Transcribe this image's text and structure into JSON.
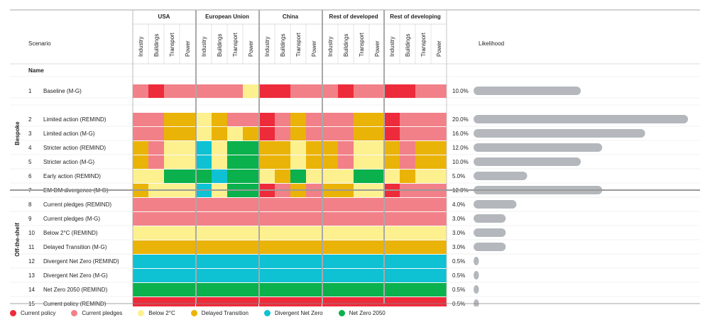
{
  "header": {
    "scenario": "Scenario",
    "likelihood": "Likelihood",
    "name": "Name"
  },
  "groups": {
    "bespoke": "Bespoke",
    "offshelf": "Off-the-shelf"
  },
  "regions": [
    "USA",
    "European Union",
    "China",
    "Rest of developed",
    "Rest of developing"
  ],
  "sectors": [
    "Industry",
    "Buildings",
    "Transport",
    "Power"
  ],
  "legend": [
    {
      "key": "CP",
      "label": "Current policy",
      "color": "#ee2b3b"
    },
    {
      "key": "PL",
      "label": "Current pledges",
      "color": "#f28088"
    },
    {
      "key": "B2",
      "label": "Below 2°C",
      "color": "#fdf08f"
    },
    {
      "key": "DT",
      "label": "Delayed Transition",
      "color": "#eab307"
    },
    {
      "key": "DN",
      "label": "Divergent Net Zero",
      "color": "#0ec1d3"
    },
    {
      "key": "NZ",
      "label": "Net Zero 2050",
      "color": "#0bb14c"
    }
  ],
  "chart_data": {
    "type": "table",
    "columns_note": "regions × sectors",
    "rows": [
      {
        "num": "1",
        "name": "Baseline (M-G)",
        "group": "",
        "likelihood": "10.0%",
        "value": 10.0,
        "cells": [
          "PL",
          "CP",
          "PL",
          "PL",
          "PL",
          "PL",
          "PL",
          "B2",
          "CP",
          "CP",
          "PL",
          "PL",
          "PL",
          "CP",
          "PL",
          "PL",
          "CP",
          "CP",
          "PL",
          "PL"
        ]
      },
      {
        "num": "2",
        "name": "Limited action (REMIND)",
        "group": "bespoke",
        "likelihood": "20.0%",
        "value": 20.0,
        "cells": [
          "PL",
          "PL",
          "DT",
          "DT",
          "B2",
          "DT",
          "PL",
          "PL",
          "CP",
          "PL",
          "DT",
          "PL",
          "PL",
          "PL",
          "DT",
          "DT",
          "CP",
          "PL",
          "PL",
          "PL"
        ]
      },
      {
        "num": "3",
        "name": "Limited action (M-G)",
        "group": "bespoke",
        "likelihood": "16.0%",
        "value": 16.0,
        "cells": [
          "PL",
          "PL",
          "DT",
          "DT",
          "B2",
          "DT",
          "B2",
          "DT",
          "CP",
          "PL",
          "DT",
          "PL",
          "PL",
          "PL",
          "DT",
          "DT",
          "CP",
          "PL",
          "PL",
          "PL"
        ]
      },
      {
        "num": "4",
        "name": "Stricter action (REMIND)",
        "group": "bespoke",
        "likelihood": "12.0%",
        "value": 12.0,
        "cells": [
          "DT",
          "PL",
          "B2",
          "B2",
          "DN",
          "B2",
          "NZ",
          "NZ",
          "DT",
          "DT",
          "B2",
          "DT",
          "DT",
          "PL",
          "B2",
          "B2",
          "DT",
          "PL",
          "DT",
          "DT"
        ]
      },
      {
        "num": "5",
        "name": "Stricter action (M-G)",
        "group": "bespoke",
        "likelihood": "10.0%",
        "value": 10.0,
        "cells": [
          "DT",
          "PL",
          "B2",
          "B2",
          "DN",
          "B2",
          "NZ",
          "NZ",
          "DT",
          "DT",
          "B2",
          "DT",
          "DT",
          "PL",
          "B2",
          "B2",
          "DT",
          "PL",
          "DT",
          "DT"
        ]
      },
      {
        "num": "6",
        "name": "Early action (REMIND)",
        "group": "bespoke",
        "likelihood": "5.0%",
        "value": 5.0,
        "cells": [
          "B2",
          "B2",
          "NZ",
          "NZ",
          "NZ",
          "DN",
          "NZ",
          "NZ",
          "B2",
          "DT",
          "NZ",
          "B2",
          "B2",
          "B2",
          "NZ",
          "NZ",
          "B2",
          "DT",
          "B2",
          "B2"
        ]
      },
      {
        "num": "7",
        "name": "EM-DM divergence (M-G)",
        "group": "bespoke",
        "likelihood": "12.0%",
        "value": 12.0,
        "cells": [
          "DT",
          "B2",
          "B2",
          "B2",
          "DN",
          "B2",
          "NZ",
          "NZ",
          "CP",
          "PL",
          "DT",
          "PL",
          "DT",
          "DT",
          "B2",
          "B2",
          "CP",
          "PL",
          "PL",
          "PL"
        ]
      },
      {
        "num": "8",
        "name": "Current pledges (REMIND)",
        "group": "offshelf",
        "likelihood": "4.0%",
        "value": 4.0,
        "fill": "PL"
      },
      {
        "num": "9",
        "name": "Current pledges (M-G)",
        "group": "offshelf",
        "likelihood": "3.0%",
        "value": 3.0,
        "fill": "PL"
      },
      {
        "num": "10",
        "name": "Below 2°C (REMIND)",
        "group": "offshelf",
        "likelihood": "3.0%",
        "value": 3.0,
        "fill": "B2"
      },
      {
        "num": "11",
        "name": "Delayed Transition (M-G)",
        "group": "offshelf",
        "likelihood": "3.0%",
        "value": 3.0,
        "fill": "DT"
      },
      {
        "num": "12",
        "name": "Divergent Net Zero (REMIND)",
        "group": "offshelf",
        "likelihood": "0.5%",
        "value": 0.5,
        "fill": "DN"
      },
      {
        "num": "13",
        "name": "Divergent Net Zero (M-G)",
        "group": "offshelf",
        "likelihood": "0.5%",
        "value": 0.5,
        "fill": "DN"
      },
      {
        "num": "14",
        "name": "Net Zero 2050 (REMIND)",
        "group": "offshelf",
        "likelihood": "0.5%",
        "value": 0.5,
        "fill": "NZ"
      },
      {
        "num": "15",
        "name": "Current policy (REMIND)",
        "group": "offshelf",
        "likelihood": "0.5%",
        "value": 0.5,
        "fill": "CP"
      }
    ],
    "likelihood_max": 20.0,
    "bar_color": "#b4b8bd"
  }
}
